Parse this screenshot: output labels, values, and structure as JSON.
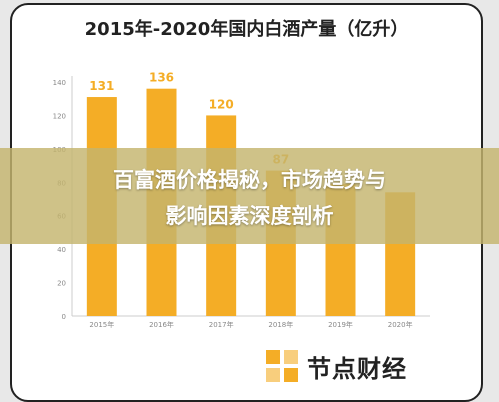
{
  "banner": {
    "line1": "百富酒价格揭秘，市场趋势与",
    "line2": "影响因素深度剖析"
  },
  "logo": {
    "text": "节点财经",
    "icon": "logo-mark-icon"
  },
  "colors": {
    "bar": "#f4ad26",
    "label": "#f4ad26",
    "banner": "#c4b46e"
  },
  "chart_data": {
    "type": "bar",
    "title": "2015年-2020年国内白酒产量（亿升）",
    "categories": [
      "2015年",
      "2016年",
      "2017年",
      "2018年",
      "2019年",
      "2020年"
    ],
    "values": [
      131,
      136,
      120,
      87,
      79,
      74
    ],
    "data_labels": [
      "131",
      "136",
      "120",
      "87",
      "",
      ""
    ],
    "yticks": [
      0,
      20,
      40,
      60,
      80,
      100,
      120,
      140
    ],
    "ylim": [
      0,
      140
    ],
    "xlabel": "",
    "ylabel": "",
    "grid": false
  }
}
